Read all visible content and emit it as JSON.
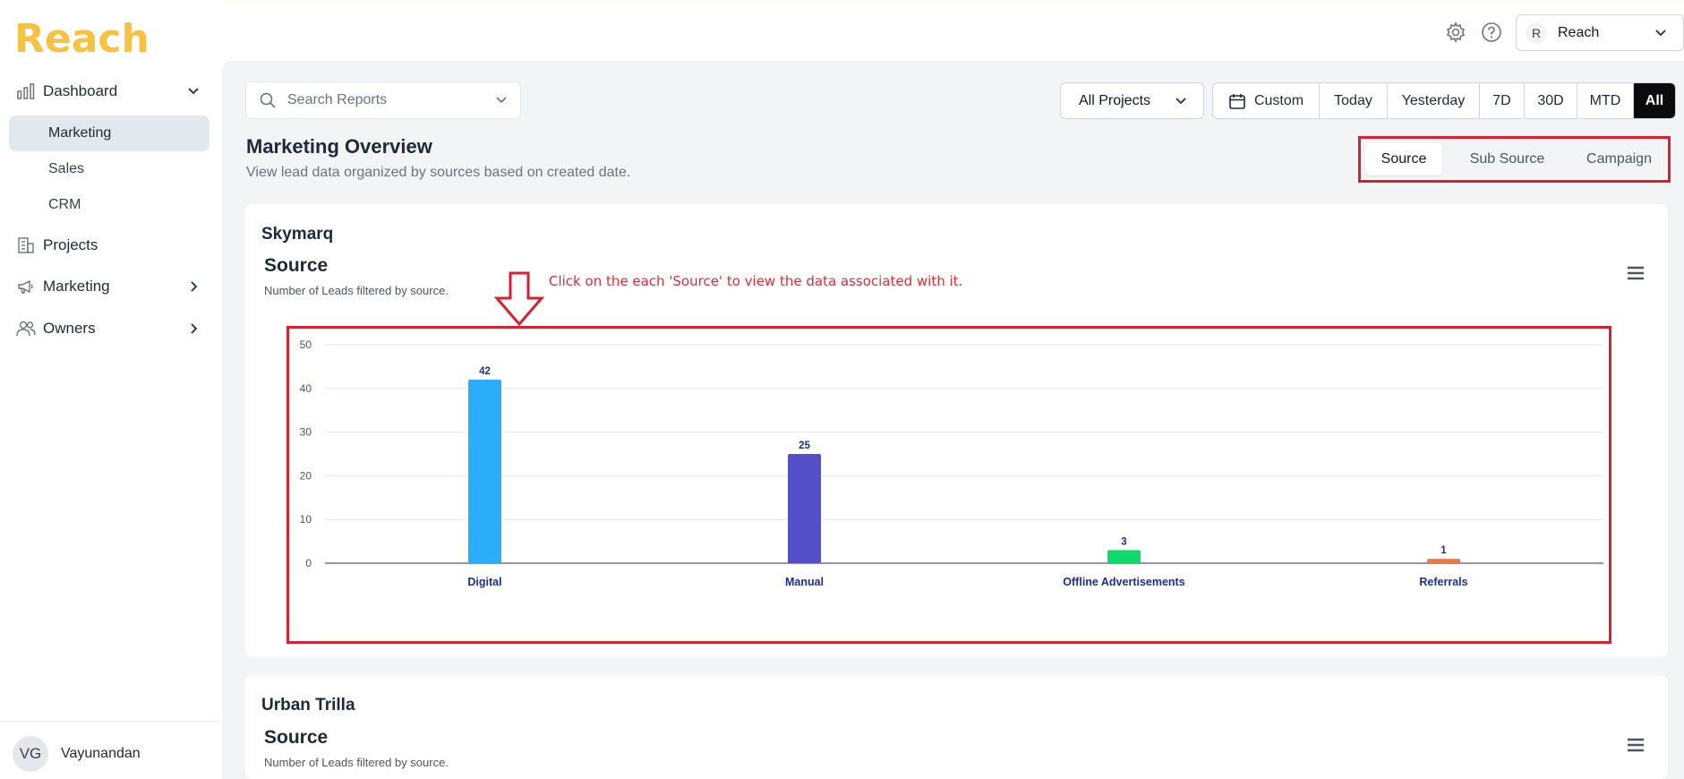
{
  "app": {
    "logo_text": "Reach",
    "brand_color": "#f5c243"
  },
  "sidebar": {
    "dashboard_label": "Dashboard",
    "sub_items": [
      {
        "label": "Marketing",
        "active": true
      },
      {
        "label": "Sales",
        "active": false
      },
      {
        "label": "CRM",
        "active": false
      }
    ],
    "projects_label": "Projects",
    "marketing_label": "Marketing",
    "owners_label": "Owners",
    "user": {
      "initials": "VG",
      "name": "Vayunandan"
    }
  },
  "header": {
    "account": {
      "initial": "R",
      "name": "Reach"
    },
    "icons": [
      "settings-icon",
      "help-icon"
    ]
  },
  "toolbar": {
    "search_placeholder": "Search Reports",
    "project_select": "All Projects",
    "date_ranges": [
      "Custom",
      "Today",
      "Yesterday",
      "7D",
      "30D",
      "MTD",
      "All"
    ],
    "active_range": "All"
  },
  "page": {
    "title": "Marketing Overview",
    "subtitle": "View lead data organized by sources based on created date.",
    "view_tabs": [
      "Source",
      "Sub Source",
      "Campaign"
    ],
    "active_view": "Source",
    "highlight_color": "#d72130"
  },
  "cards": [
    {
      "project": "Skymarq",
      "chart_title": "Source",
      "chart_subtitle": "Number of Leads filtered by source.",
      "annotation": "Click on the each 'Source' to view the data associated with it."
    },
    {
      "project": "Urban Trilla",
      "chart_title": "Source",
      "chart_subtitle": "Number of Leads filtered by source."
    }
  ],
  "chart_data": {
    "type": "bar",
    "title": "Source",
    "subtitle": "Number of Leads filtered by source.",
    "categories": [
      "Digital",
      "Manual",
      "Offline Advertisements",
      "Referrals"
    ],
    "values": [
      42,
      25,
      3,
      1
    ],
    "colors": [
      "#2aaef7",
      "#5550c9",
      "#12d96b",
      "#e87a48"
    ],
    "ylim": [
      0,
      50
    ],
    "yticks": [
      0,
      10,
      20,
      30,
      40,
      50
    ],
    "grid": true,
    "data_labels": true,
    "label_color": "#1a2e9a"
  }
}
